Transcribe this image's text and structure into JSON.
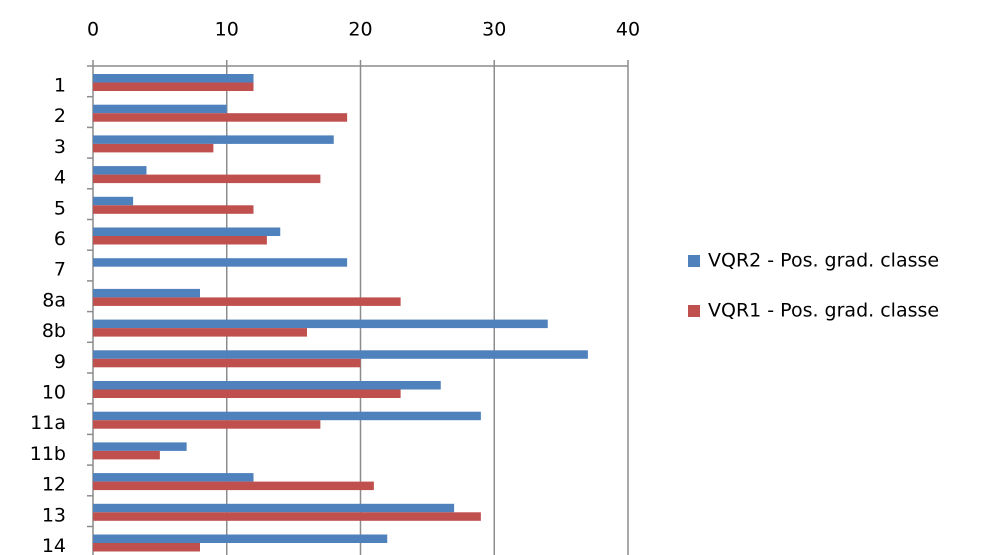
{
  "chart_data": {
    "type": "hbar",
    "categories": [
      "1",
      "2",
      "3",
      "4",
      "5",
      "6",
      "7",
      "8a",
      "8b",
      "9",
      "10",
      "11a",
      "11b",
      "12",
      "13",
      "14"
    ],
    "series": [
      {
        "name": "VQR2 - Pos. grad. classe",
        "color": "#4f81bd",
        "values": [
          12,
          10,
          18,
          4,
          3,
          14,
          19,
          8,
          34,
          37,
          26,
          29,
          7,
          12,
          27,
          22
        ]
      },
      {
        "name": "VQR1 - Pos. grad. classe",
        "color": "#c0504d",
        "values": [
          12,
          19,
          9,
          17,
          12,
          13,
          0,
          23,
          16,
          20,
          23,
          17,
          5,
          21,
          29,
          8
        ]
      }
    ],
    "xlim": [
      0,
      40
    ],
    "xticks": [
      0,
      10,
      20,
      30,
      40
    ],
    "grid": true,
    "legend": "right"
  }
}
